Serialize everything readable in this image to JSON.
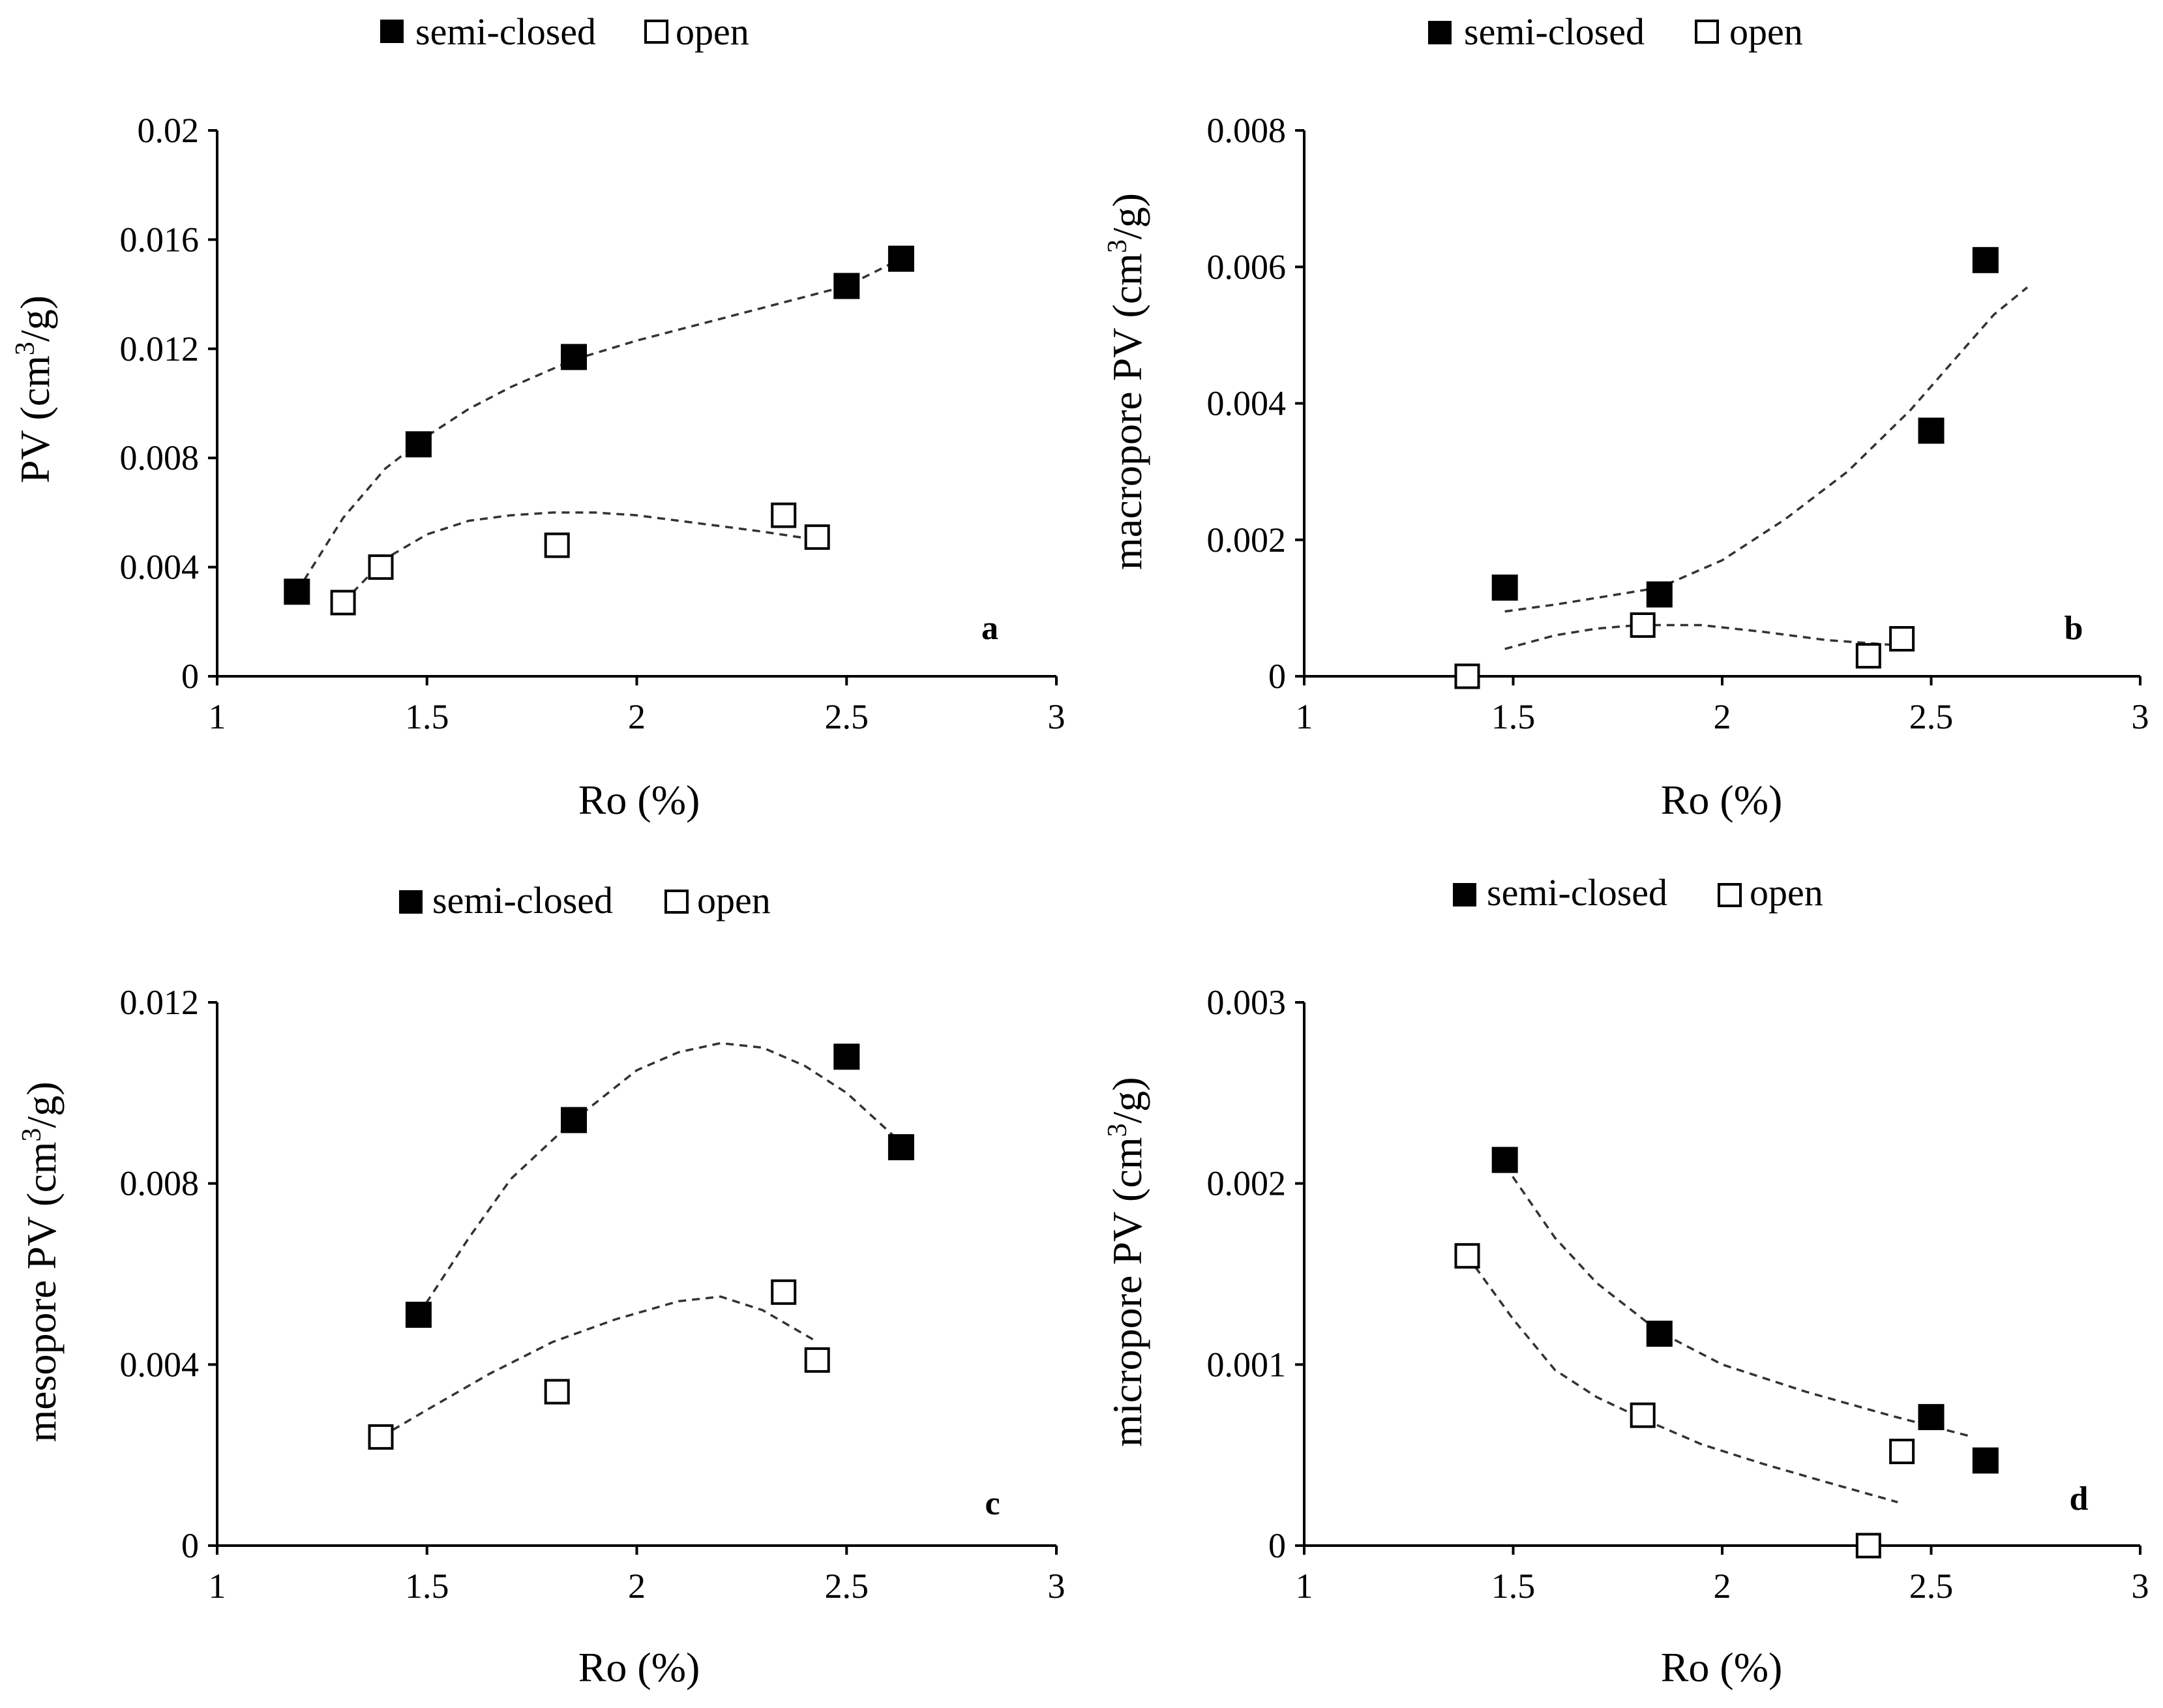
{
  "chart_data": [
    {
      "type": "scatter",
      "panel_label": "a",
      "ylabel": "PV (cm",
      "ylabel_sup": "3",
      "ylabel_tail": "/g)",
      "xlabel": "Ro (%)",
      "xlim": [
        1,
        3
      ],
      "ylim": [
        0,
        0.02
      ],
      "xticks": [
        1,
        1.5,
        2,
        2.5,
        3
      ],
      "xtick_labels": [
        "1",
        "1.5",
        "2",
        "2.5",
        "3"
      ],
      "yticks": [
        0,
        0.004,
        0.008,
        0.012,
        0.016,
        0.02
      ],
      "ytick_labels": [
        "0",
        "0.004",
        "0.008",
        "0.012",
        "0.016",
        "0.02"
      ],
      "legend": [
        "semi-closed",
        "open"
      ],
      "legend_position": "top",
      "series": [
        {
          "name": "semi-closed",
          "marker": "filled-square",
          "x": [
            1.19,
            1.48,
            1.85,
            2.5,
            2.63
          ],
          "y": [
            0.0031,
            0.0085,
            0.0117,
            0.0143,
            0.0153
          ],
          "trend": [
            [
              1.19,
              0.0031
            ],
            [
              1.3,
              0.0058
            ],
            [
              1.4,
              0.0076
            ],
            [
              1.5,
              0.0088
            ],
            [
              1.6,
              0.0098
            ],
            [
              1.7,
              0.0106
            ],
            [
              1.85,
              0.0116
            ],
            [
              2.0,
              0.0123
            ],
            [
              2.2,
              0.0131
            ],
            [
              2.4,
              0.0139
            ],
            [
              2.5,
              0.0143
            ],
            [
              2.63,
              0.0153
            ]
          ]
        },
        {
          "name": "open",
          "marker": "open-square",
          "x": [
            1.3,
            1.39,
            1.81,
            2.35,
            2.43
          ],
          "y": [
            0.0027,
            0.004,
            0.0048,
            0.0059,
            0.0051
          ],
          "trend": [
            [
              1.3,
              0.0027
            ],
            [
              1.4,
              0.0043
            ],
            [
              1.5,
              0.0052
            ],
            [
              1.6,
              0.0057
            ],
            [
              1.7,
              0.0059
            ],
            [
              1.8,
              0.006
            ],
            [
              1.9,
              0.006
            ],
            [
              2.0,
              0.0059
            ],
            [
              2.1,
              0.0057
            ],
            [
              2.2,
              0.0055
            ],
            [
              2.3,
              0.0053
            ],
            [
              2.43,
              0.005
            ]
          ]
        }
      ]
    },
    {
      "type": "scatter",
      "panel_label": "b",
      "ylabel": "macropore  PV (cm",
      "ylabel_sup": "3",
      "ylabel_tail": "/g)",
      "xlabel": "Ro (%)",
      "xlim": [
        1,
        3
      ],
      "ylim": [
        0,
        0.008
      ],
      "xticks": [
        1,
        1.5,
        2,
        2.5,
        3
      ],
      "xtick_labels": [
        "1",
        "1.5",
        "2",
        "2.5",
        "3"
      ],
      "yticks": [
        0,
        0.002,
        0.004,
        0.006,
        0.008
      ],
      "ytick_labels": [
        "0",
        "0.002",
        "0.004",
        "0.006",
        "0.008"
      ],
      "legend": [
        "semi-closed",
        "open"
      ],
      "legend_position": "top",
      "series": [
        {
          "name": "semi-closed",
          "marker": "filled-square",
          "x": [
            1.48,
            1.85,
            2.5,
            2.63
          ],
          "y": [
            0.0013,
            0.0012,
            0.0036,
            0.0061
          ],
          "trend": [
            [
              1.48,
              0.00095
            ],
            [
              1.6,
              0.00105
            ],
            [
              1.7,
              0.00115
            ],
            [
              1.85,
              0.0013
            ],
            [
              2.0,
              0.0017
            ],
            [
              2.15,
              0.0023
            ],
            [
              2.3,
              0.003
            ],
            [
              2.45,
              0.0039
            ],
            [
              2.55,
              0.0046
            ],
            [
              2.65,
              0.0053
            ],
            [
              2.73,
              0.0057
            ]
          ]
        },
        {
          "name": "open",
          "marker": "open-square",
          "x": [
            1.39,
            1.81,
            2.35,
            2.43
          ],
          "y": [
            0.0,
            0.00075,
            0.0003,
            0.00055
          ],
          "trend": [
            [
              1.48,
              0.0004
            ],
            [
              1.6,
              0.0006
            ],
            [
              1.7,
              0.0007
            ],
            [
              1.8,
              0.00075
            ],
            [
              1.95,
              0.00075
            ],
            [
              2.1,
              0.00065
            ],
            [
              2.25,
              0.00053
            ],
            [
              2.43,
              0.00045
            ]
          ]
        }
      ]
    },
    {
      "type": "scatter",
      "panel_label": "c",
      "ylabel": "mesopore  PV (cm",
      "ylabel_sup": "3",
      "ylabel_tail": "/g)",
      "xlabel": "Ro (%)",
      "xlim": [
        1,
        3
      ],
      "ylim": [
        0,
        0.012
      ],
      "xticks": [
        1,
        1.5,
        2,
        2.5,
        3
      ],
      "xtick_labels": [
        "1",
        "1.5",
        "2",
        "2.5",
        "3"
      ],
      "yticks": [
        0,
        0.004,
        0.008,
        0.012
      ],
      "ytick_labels": [
        "0",
        "0.004",
        "0.008",
        "0.012"
      ],
      "legend": [
        "semi-closed",
        "open"
      ],
      "legend_position": "top",
      "series": [
        {
          "name": "semi-closed",
          "marker": "filled-square",
          "x": [
            1.48,
            1.85,
            2.5,
            2.63
          ],
          "y": [
            0.0051,
            0.0094,
            0.0108,
            0.0088
          ],
          "trend": [
            [
              1.48,
              0.0051
            ],
            [
              1.6,
              0.0068
            ],
            [
              1.7,
              0.0081
            ],
            [
              1.85,
              0.0094
            ],
            [
              2.0,
              0.0105
            ],
            [
              2.1,
              0.0109
            ],
            [
              2.2,
              0.0111
            ],
            [
              2.3,
              0.011
            ],
            [
              2.4,
              0.0106
            ],
            [
              2.5,
              0.01
            ],
            [
              2.63,
              0.0089
            ]
          ]
        },
        {
          "name": "open",
          "marker": "open-square",
          "x": [
            1.39,
            1.81,
            2.35,
            2.43
          ],
          "y": [
            0.0024,
            0.0034,
            0.0056,
            0.0041
          ],
          "trend": [
            [
              1.39,
              0.0024
            ],
            [
              1.5,
              0.003
            ],
            [
              1.65,
              0.0038
            ],
            [
              1.8,
              0.0045
            ],
            [
              1.95,
              0.005
            ],
            [
              2.1,
              0.0054
            ],
            [
              2.2,
              0.0055
            ],
            [
              2.3,
              0.0052
            ],
            [
              2.43,
              0.0045
            ]
          ]
        }
      ]
    },
    {
      "type": "scatter",
      "panel_label": "d",
      "ylabel": "micropore  PV (cm",
      "ylabel_sup": "3",
      "ylabel_tail": "/g)",
      "xlabel": "Ro (%)",
      "xlim": [
        1,
        3
      ],
      "ylim": [
        0,
        0.003
      ],
      "xticks": [
        1,
        1.5,
        2,
        2.5,
        3
      ],
      "xtick_labels": [
        "1",
        "1.5",
        "2",
        "2.5",
        "3"
      ],
      "yticks": [
        0,
        0.001,
        0.002,
        0.003
      ],
      "ytick_labels": [
        "0",
        "0.001",
        "0.002",
        "0.003"
      ],
      "legend": [
        "semi-closed",
        "open"
      ],
      "legend_position": "top",
      "series": [
        {
          "name": "semi-closed",
          "marker": "filled-square",
          "x": [
            1.48,
            1.85,
            2.5,
            2.63
          ],
          "y": [
            0.00213,
            0.00117,
            0.00071,
            0.00047
          ],
          "trend": [
            [
              1.48,
              0.0021
            ],
            [
              1.6,
              0.0017
            ],
            [
              1.7,
              0.00145
            ],
            [
              1.85,
              0.00118
            ],
            [
              2.0,
              0.001
            ],
            [
              2.2,
              0.00085
            ],
            [
              2.4,
              0.00072
            ],
            [
              2.6,
              0.0006
            ]
          ]
        },
        {
          "name": "open",
          "marker": "open-square",
          "x": [
            1.39,
            1.81,
            2.35,
            2.43
          ],
          "y": [
            0.0016,
            0.00072,
            0.0,
            0.00052
          ],
          "trend": [
            [
              1.39,
              0.0016
            ],
            [
              1.5,
              0.00125
            ],
            [
              1.6,
              0.00097
            ],
            [
              1.7,
              0.00082
            ],
            [
              1.81,
              0.0007
            ],
            [
              1.95,
              0.00056
            ],
            [
              2.1,
              0.00045
            ],
            [
              2.25,
              0.00035
            ],
            [
              2.42,
              0.00024
            ]
          ]
        }
      ]
    }
  ]
}
